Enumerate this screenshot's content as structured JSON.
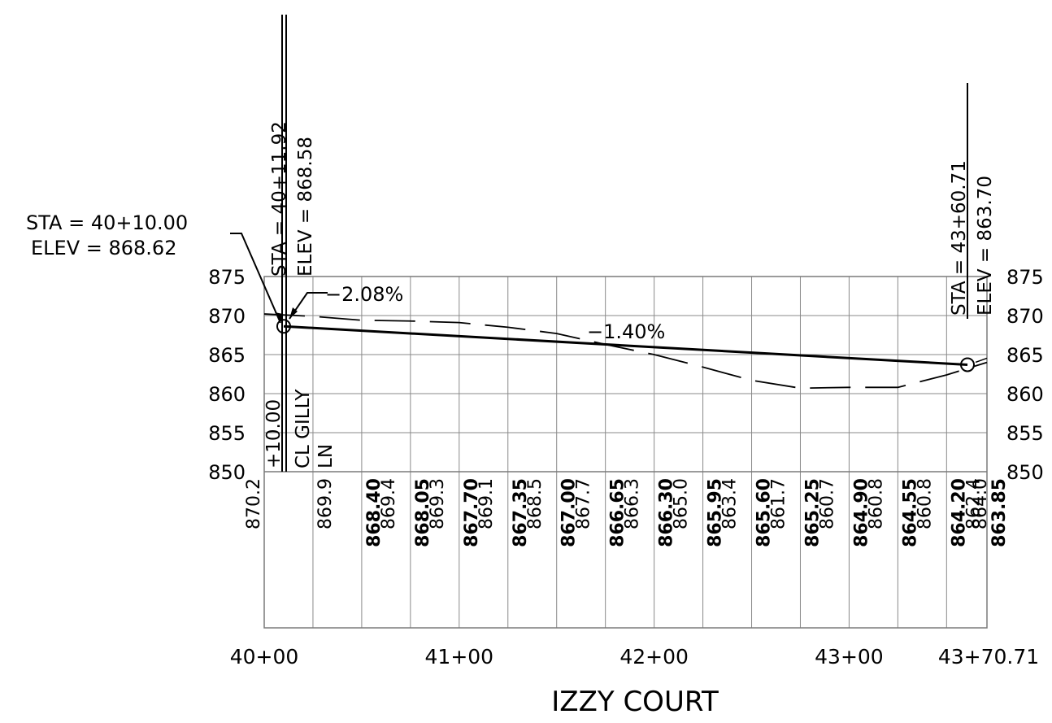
{
  "title": "IZZY COURT",
  "station_range": [
    4000,
    4370.71
  ],
  "elev_range": [
    850,
    875
  ],
  "x_tick_labels": [
    {
      "sta": 4000,
      "label": "40+00"
    },
    {
      "sta": 4100,
      "label": "41+00"
    },
    {
      "sta": 4200,
      "label": "42+00"
    },
    {
      "sta": 4300,
      "label": "43+00"
    },
    {
      "sta": 4370.71,
      "label": "43+70.71"
    }
  ],
  "y_tick_labels": [
    "850",
    "855",
    "860",
    "865",
    "870",
    "875"
  ],
  "pvc_callout": {
    "sta_text": "STA = 40+10.00",
    "elev_text": "ELEV =   868.62"
  },
  "start_vertical": {
    "sta_text": "STA =  40+11.92",
    "elev_text": "ELEV =   868.58"
  },
  "end_vertical": {
    "sta_text": "STA =  43+60.71",
    "elev_text": "ELEV =   863.70"
  },
  "cross_street": {
    "station_text": "+10.00",
    "line1": "CL GILLY",
    "line2": "LN"
  },
  "grades": {
    "start": "−2.08%",
    "main": "−1.40%"
  },
  "proposed_profile": [
    {
      "sta": 4010.0,
      "elev": 868.62
    },
    {
      "sta": 4360.71,
      "elev": 863.7
    }
  ],
  "existing_profile": [
    {
      "sta": 4000,
      "elev": 870.2
    },
    {
      "sta": 4025,
      "elev": 869.9
    },
    {
      "sta": 4050,
      "elev": 869.4
    },
    {
      "sta": 4075,
      "elev": 869.3
    },
    {
      "sta": 4100,
      "elev": 869.1
    },
    {
      "sta": 4125,
      "elev": 868.5
    },
    {
      "sta": 4150,
      "elev": 867.7
    },
    {
      "sta": 4175,
      "elev": 866.3
    },
    {
      "sta": 4200,
      "elev": 865.0
    },
    {
      "sta": 4225,
      "elev": 863.4
    },
    {
      "sta": 4250,
      "elev": 861.7
    },
    {
      "sta": 4275,
      "elev": 860.7
    },
    {
      "sta": 4300,
      "elev": 860.8
    },
    {
      "sta": 4325,
      "elev": 860.8
    },
    {
      "sta": 4350,
      "elev": 862.4
    },
    {
      "sta": 4370.71,
      "elev": 864.0
    }
  ],
  "data_columns": [
    {
      "sta": 4000,
      "existing": "870.2"
    },
    {
      "sta": 4025,
      "existing": "869.9"
    },
    {
      "sta": 4050,
      "proposed": "868.40",
      "existing": "869.4"
    },
    {
      "sta": 4075,
      "proposed": "868.05",
      "existing": "869.3"
    },
    {
      "sta": 4100,
      "proposed": "867.70",
      "existing": "869.1"
    },
    {
      "sta": 4125,
      "proposed": "867.35",
      "existing": "868.5"
    },
    {
      "sta": 4150,
      "proposed": "867.00",
      "existing": "867.7"
    },
    {
      "sta": 4175,
      "proposed": "866.65",
      "existing": "866.3"
    },
    {
      "sta": 4200,
      "proposed": "866.30",
      "existing": "865.0"
    },
    {
      "sta": 4225,
      "proposed": "865.95",
      "existing": "863.4"
    },
    {
      "sta": 4250,
      "proposed": "865.60",
      "existing": "861.7"
    },
    {
      "sta": 4275,
      "proposed": "865.25",
      "existing": "860.7"
    },
    {
      "sta": 4300,
      "proposed": "864.90",
      "existing": "860.8"
    },
    {
      "sta": 4325,
      "proposed": "864.55",
      "existing": "860.8"
    },
    {
      "sta": 4350,
      "proposed": "864.20",
      "existing": "862.4"
    },
    {
      "sta": 4370.71,
      "proposed": "863.85",
      "existing": "864.0"
    }
  ],
  "colors": {
    "ink": "#000000",
    "grid": "#8a8a8a"
  }
}
